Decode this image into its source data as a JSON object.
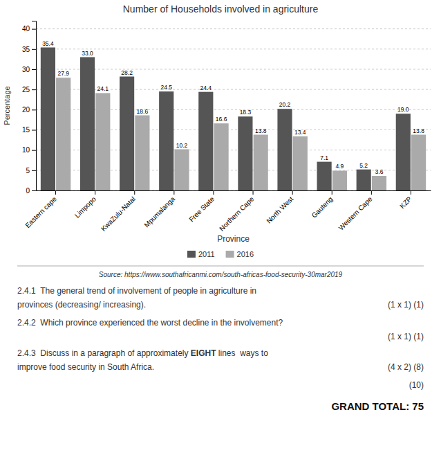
{
  "chart_data": {
    "type": "bar",
    "title": "Number of Households involved in agriculture",
    "xlabel": "Province",
    "ylabel": "Percentage",
    "categories": [
      "Eastern cape",
      "Limpopo",
      "KwaZulu-Natal",
      "Mpumalanga",
      "Free State",
      "Northern Cape",
      "North West",
      "Gauteng",
      "Western Cape",
      "KZP"
    ],
    "series": [
      {
        "name": "2011",
        "color": "#555555",
        "values": [
          35.4,
          33.0,
          28.2,
          24.5,
          24.4,
          18.3,
          20.2,
          7.1,
          5.2,
          19.0
        ],
        "value_labels": [
          "35.4",
          "33.0",
          "28.2",
          "24.5",
          "24.4",
          "18.3",
          "20.2",
          "7.1",
          "5.2",
          "19.0"
        ]
      },
      {
        "name": "2016",
        "color": "#aaaaaa",
        "values": [
          27.9,
          24.1,
          18.6,
          10.2,
          16.6,
          13.8,
          13.4,
          4.9,
          3.6,
          13.8
        ]
      }
    ],
    "ylim": [
      0,
      42
    ],
    "yticks": [
      0,
      5,
      10,
      15,
      20,
      25,
      30,
      35,
      40
    ],
    "grid": true,
    "legend": "bottom",
    "data_labels": true,
    "annotations": [
      "Source: https://www.southafricanmi.com/south-africas-food-security-30mar2019",
      "2.4.1  The general trend of involvement of people in agriculture in",
      "provinces (decreasing/ increasing).",
      "(1 x 1) (1)",
      "2.4.2  Which province experienced the worst decline in the involvement?",
      "(1 x 1) (1)",
      "2.4.3  Discuss in a paragraph of approximately ",
      "EIGHT",
      " lines  ways to",
      "improve food security in South Africa.",
      "(4 x 2) (8)",
      "(10)",
      "GRAND TOTAL: 75"
    ]
  }
}
